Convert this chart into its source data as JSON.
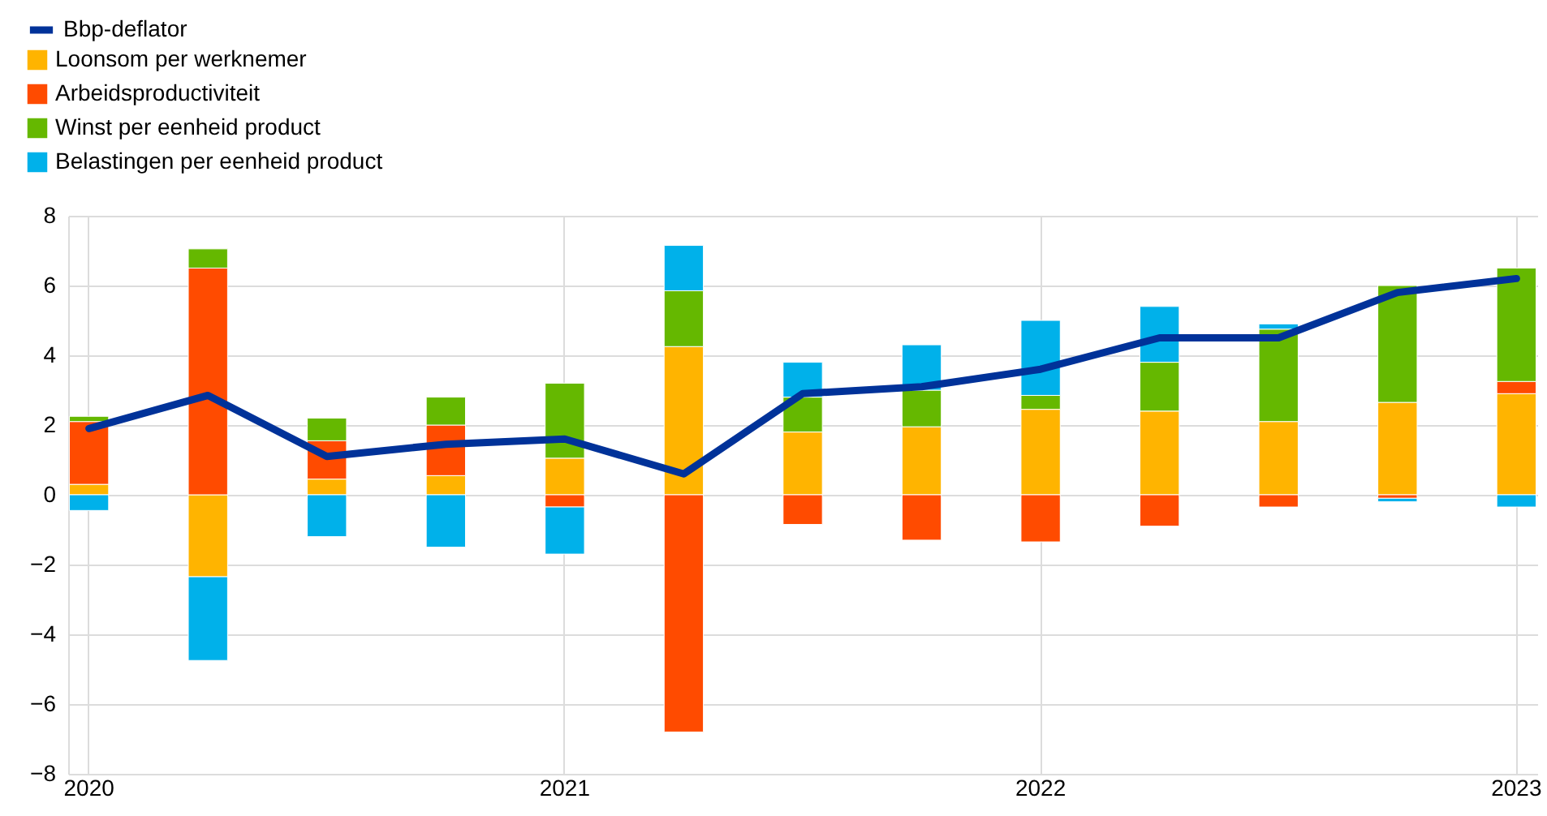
{
  "chart_data": {
    "type": "bar",
    "stacked": true,
    "legend": "top left",
    "grid": true,
    "categories": [
      "2020",
      null,
      null,
      null,
      "2021",
      null,
      null,
      null,
      "2022",
      null,
      null,
      null,
      "2023"
    ],
    "ylim": [
      -8,
      8
    ],
    "yticks": [
      -8,
      -6,
      -4,
      -2,
      0,
      2,
      4,
      6,
      8
    ],
    "series": [
      {
        "name": "Bbp-deflator",
        "type": "line",
        "color": "#003299",
        "values": [
          1.9,
          2.85,
          1.1,
          1.45,
          1.6,
          0.6,
          2.9,
          3.1,
          3.6,
          4.5,
          4.5,
          5.8,
          6.2
        ]
      },
      {
        "name": "Loonsom per werknemer",
        "color": "#ffb400",
        "values": [
          0.3,
          -2.35,
          0.45,
          0.55,
          1.05,
          4.25,
          1.8,
          1.95,
          2.45,
          2.4,
          2.1,
          2.65,
          2.9
        ]
      },
      {
        "name": "Arbeidsproductiviteit",
        "color": "#ff4b00",
        "values": [
          1.8,
          6.5,
          1.1,
          1.45,
          -0.35,
          -6.8,
          -0.85,
          -1.3,
          -1.35,
          -0.9,
          -0.35,
          -0.1,
          0.35
        ]
      },
      {
        "name": "Winst per eenheid product",
        "color": "#65b800",
        "values": [
          0.15,
          0.55,
          0.65,
          0.8,
          2.15,
          1.6,
          1.0,
          1.05,
          0.4,
          1.4,
          2.65,
          3.35,
          3.25
        ]
      },
      {
        "name": "Belastingen per eenheid product",
        "color": "#00b1ea",
        "values": [
          -0.45,
          -2.4,
          -1.2,
          -1.5,
          -1.35,
          1.3,
          1.0,
          1.3,
          2.15,
          1.6,
          0.15,
          -0.1,
          -0.35
        ]
      }
    ]
  }
}
